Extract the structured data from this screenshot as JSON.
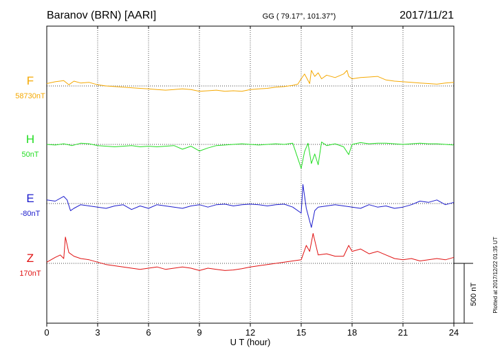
{
  "header": {
    "station": "Baranov (BRN)  [AARI]",
    "coords": "GG ( 79.17°, 101.37°)",
    "date": "2017/11/21"
  },
  "footer_note": "Plotted at 2017/12/22 01:35 UT",
  "scale_bar_label": "500 nT",
  "chart_data": {
    "type": "line",
    "title": "Baranov (BRN)  [AARI]",
    "xlabel": "U T (hour)",
    "xlim": [
      0,
      24
    ],
    "x_ticks": [
      0,
      3,
      6,
      9,
      12,
      15,
      18,
      21,
      24
    ],
    "x_tick_labels": [
      "0",
      "3",
      "6",
      "9",
      "12",
      "15",
      "18",
      "21",
      "24"
    ],
    "grid": true,
    "scale_bar_nT": 500,
    "series": [
      {
        "name": "F",
        "baseline_label": "58730nT",
        "color": "#f5a800",
        "x": [
          0,
          0.5,
          1,
          1.3,
          1.6,
          2,
          2.5,
          3,
          3.5,
          4,
          4.5,
          5,
          5.5,
          6,
          6.5,
          7,
          7.5,
          8,
          8.5,
          9,
          9.5,
          10,
          10.5,
          11,
          11.5,
          12,
          12.5,
          13,
          13.5,
          14,
          14.5,
          14.8,
          15,
          15.2,
          15.5,
          15.6,
          15.8,
          16,
          16.2,
          16.5,
          17,
          17.5,
          17.7,
          17.8,
          18,
          18.5,
          19,
          19.5,
          20,
          20.5,
          21,
          21.5,
          22,
          22.5,
          23,
          23.5,
          24
        ],
        "y": [
          20,
          35,
          45,
          10,
          40,
          25,
          30,
          10,
          0,
          -5,
          -10,
          -15,
          -20,
          -25,
          -30,
          -35,
          -30,
          -25,
          -30,
          -45,
          -40,
          -35,
          -45,
          -40,
          -45,
          -30,
          -25,
          -20,
          -10,
          -5,
          5,
          15,
          60,
          100,
          20,
          130,
          80,
          110,
          60,
          90,
          70,
          100,
          130,
          80,
          60,
          70,
          75,
          80,
          50,
          40,
          35,
          30,
          25,
          20,
          15,
          25,
          30
        ]
      },
      {
        "name": "H",
        "baseline_label": "50nT",
        "color": "#22dd22",
        "x": [
          0,
          0.5,
          1,
          1.5,
          2,
          2.5,
          3,
          3.5,
          4,
          4.5,
          5,
          5.5,
          6,
          6.5,
          7,
          7.5,
          8,
          8.5,
          9,
          9.5,
          10,
          10.5,
          11,
          11.5,
          12,
          12.5,
          13,
          13.5,
          14,
          14.5,
          15,
          15.2,
          15.4,
          15.6,
          15.8,
          16,
          16.2,
          16.5,
          17,
          17.5,
          17.8,
          18,
          18.5,
          19,
          19.5,
          20,
          20.5,
          21,
          21.5,
          22,
          22.5,
          23,
          23.5,
          24
        ],
        "y": [
          0,
          -5,
          5,
          -10,
          10,
          5,
          -10,
          -15,
          -20,
          -15,
          -10,
          -20,
          -15,
          -20,
          -15,
          -10,
          -40,
          -15,
          -55,
          -30,
          -10,
          -5,
          0,
          5,
          0,
          -5,
          0,
          5,
          0,
          10,
          -200,
          -60,
          10,
          -160,
          -80,
          -170,
          20,
          -10,
          5,
          -20,
          -85,
          0,
          15,
          5,
          10,
          10,
          5,
          0,
          5,
          10,
          5,
          5,
          0,
          -5
        ]
      },
      {
        "name": "E",
        "baseline_label": "-80nT",
        "color": "#1a1acc",
        "x": [
          0,
          0.5,
          1,
          1.2,
          1.4,
          1.6,
          2,
          2.5,
          3,
          3.5,
          4,
          4.5,
          5,
          5.5,
          6,
          6.5,
          7,
          7.5,
          8,
          8.5,
          9,
          9.5,
          10,
          10.5,
          11,
          11.5,
          12,
          12.5,
          13,
          13.5,
          14,
          14.5,
          15,
          15.1,
          15.3,
          15.6,
          15.8,
          16,
          16.5,
          17,
          17.5,
          18,
          18.5,
          19,
          19.5,
          20,
          20.5,
          21,
          21.5,
          22,
          22.5,
          23,
          23.5,
          24
        ],
        "y": [
          30,
          20,
          60,
          30,
          -60,
          -40,
          -10,
          -20,
          -30,
          -40,
          -20,
          -10,
          -50,
          -20,
          -40,
          -10,
          -20,
          -30,
          -40,
          -20,
          -10,
          -30,
          -10,
          -5,
          -20,
          -10,
          -5,
          -10,
          -20,
          -10,
          -5,
          -30,
          -80,
          160,
          -40,
          -200,
          -60,
          -30,
          -20,
          -10,
          -20,
          -30,
          -40,
          -10,
          -30,
          -20,
          -40,
          -30,
          -10,
          20,
          10,
          30,
          -10,
          10
        ]
      },
      {
        "name": "Z",
        "baseline_label": "170nT",
        "color": "#e01010",
        "x": [
          0,
          0.5,
          0.8,
          1,
          1.1,
          1.3,
          1.6,
          2,
          2.5,
          3,
          3.5,
          4,
          4.5,
          5,
          5.5,
          6,
          6.5,
          7,
          7.5,
          8,
          8.5,
          9,
          9.5,
          10,
          10.5,
          11,
          11.5,
          12,
          12.5,
          13,
          13.5,
          14,
          14.5,
          15,
          15.3,
          15.5,
          15.7,
          16,
          16.5,
          17,
          17.5,
          17.8,
          18,
          18.5,
          19,
          19.5,
          20,
          20.5,
          21,
          21.5,
          22,
          22.5,
          23,
          23.5,
          24
        ],
        "y": [
          10,
          50,
          70,
          40,
          220,
          90,
          60,
          40,
          30,
          10,
          -10,
          -20,
          -30,
          -40,
          -50,
          -40,
          -30,
          -50,
          -40,
          -30,
          -40,
          -60,
          -40,
          -50,
          -60,
          -55,
          -45,
          -30,
          -20,
          -10,
          0,
          10,
          20,
          30,
          150,
          100,
          250,
          70,
          80,
          60,
          60,
          150,
          100,
          120,
          80,
          100,
          70,
          40,
          30,
          40,
          20,
          30,
          40,
          30,
          50
        ]
      }
    ]
  }
}
